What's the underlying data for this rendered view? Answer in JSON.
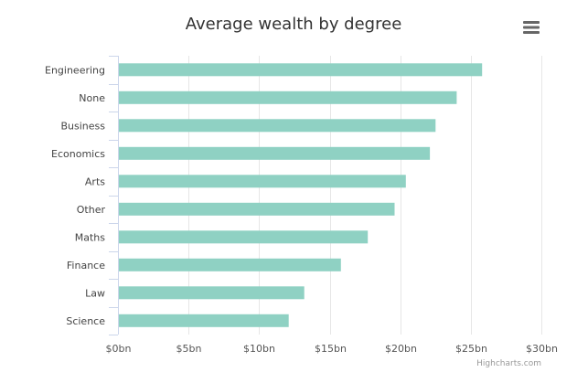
{
  "chart_data": {
    "type": "bar",
    "orientation": "horizontal",
    "title": "Average wealth by degree",
    "categories": [
      "Engineering",
      "None",
      "Business",
      "Economics",
      "Arts",
      "Other",
      "Maths",
      "Finance",
      "Law",
      "Science"
    ],
    "values": [
      25.8,
      24.0,
      22.5,
      22.1,
      20.4,
      19.6,
      17.7,
      15.8,
      13.2,
      12.1
    ],
    "xlim": [
      0,
      30
    ],
    "ticks": [
      0,
      5,
      10,
      15,
      20,
      25,
      30
    ],
    "tick_labels": [
      "$0bn",
      "$5bn",
      "$10bn",
      "$15bn",
      "$20bn",
      "$25bn",
      "$30bn"
    ],
    "xlabel": "",
    "ylabel": "",
    "grid": true,
    "legend": "none",
    "bar_color": "#8fd1c3"
  },
  "toolbar": {
    "menu_icon": "hamburger-menu-icon"
  },
  "credits": "Highcharts.com"
}
